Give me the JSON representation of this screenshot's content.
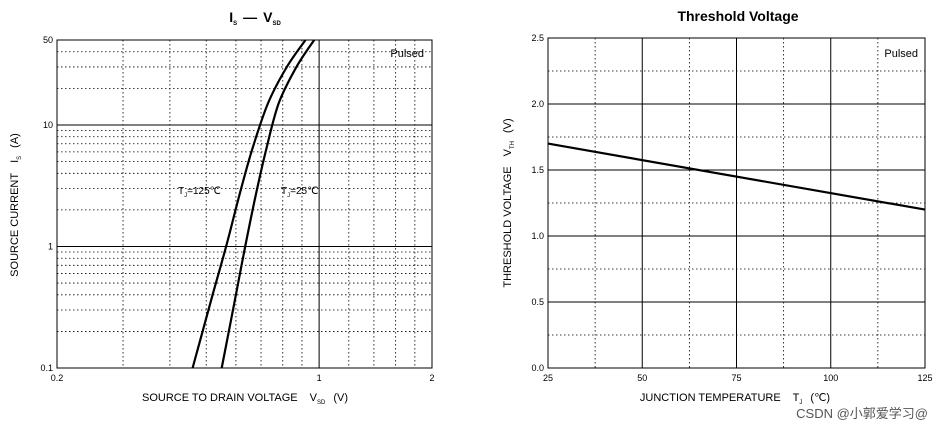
{
  "watermark": "CSDN @小郭爱学习@",
  "chart_data": [
    {
      "type": "line",
      "title": {
        "main_left": "I",
        "main_left_sub": "S",
        "dash": "—",
        "main_right": "V",
        "main_right_sub": "SD"
      },
      "note": "Pulsed",
      "xlabel": {
        "text": "SOURCE TO DRAIN VOLTAGE",
        "sym": "V",
        "sub": "SD",
        "unit": "(V)"
      },
      "ylabel": {
        "text": "SOURCE CURRENT",
        "sym": "I",
        "sub": "S",
        "unit": "(A)"
      },
      "xscale": "log",
      "yscale": "log",
      "xlim": [
        0.2,
        2
      ],
      "ylim": [
        0.1,
        50
      ],
      "xticks": [
        {
          "v": 0.2,
          "label": "0.2"
        },
        {
          "v": 1,
          "label": "1"
        },
        {
          "v": 2,
          "label": "2"
        }
      ],
      "yticks": [
        {
          "v": 0.1,
          "label": "0.1"
        },
        {
          "v": 1,
          "label": "1"
        },
        {
          "v": 10,
          "label": "10"
        },
        {
          "v": 50,
          "label": "50"
        }
      ],
      "series": [
        {
          "name": "TJ=125℃",
          "label": {
            "sym": "T",
            "sub": "J",
            "rest": "=125℃"
          },
          "x": [
            0.46,
            0.52,
            0.565,
            0.61,
            0.66,
            0.73,
            0.82,
            0.92
          ],
          "y": [
            0.1,
            0.4,
            1.0,
            2.5,
            6.0,
            15,
            30,
            50
          ]
        },
        {
          "name": "TJ=25℃",
          "label": {
            "sym": "T",
            "sub": "J",
            "rest": "=25℃"
          },
          "x": [
            0.55,
            0.6,
            0.635,
            0.675,
            0.72,
            0.78,
            0.87,
            0.97
          ],
          "y": [
            0.1,
            0.4,
            1.0,
            2.5,
            6.0,
            15,
            30,
            50
          ]
        }
      ]
    },
    {
      "type": "line",
      "title": "Threshold Voltage",
      "note": "Pulsed",
      "xlabel": {
        "text": "JUNCTION TEMPERATURE",
        "sym": "T",
        "sub": "J",
        "unit": "(℃)"
      },
      "ylabel": {
        "text": "THRESHOLD VOLTAGE",
        "sym": "V",
        "sub": "TH",
        "unit": "(V)"
      },
      "xlim": [
        25,
        125
      ],
      "ylim": [
        0,
        2.5
      ],
      "xticks": [
        {
          "v": 25,
          "label": "25"
        },
        {
          "v": 50,
          "label": "50"
        },
        {
          "v": 75,
          "label": "75"
        },
        {
          "v": 100,
          "label": "100"
        },
        {
          "v": 125,
          "label": "125"
        }
      ],
      "yticks": [
        {
          "v": 0,
          "label": "0.0"
        },
        {
          "v": 0.5,
          "label": "0.5"
        },
        {
          "v": 1.0,
          "label": "1.0"
        },
        {
          "v": 1.5,
          "label": "1.5"
        },
        {
          "v": 2.0,
          "label": "2.0"
        },
        {
          "v": 2.5,
          "label": "2.5"
        }
      ],
      "series": [
        {
          "x": [
            25,
            125
          ],
          "y": [
            1.7,
            1.2
          ]
        }
      ]
    }
  ]
}
